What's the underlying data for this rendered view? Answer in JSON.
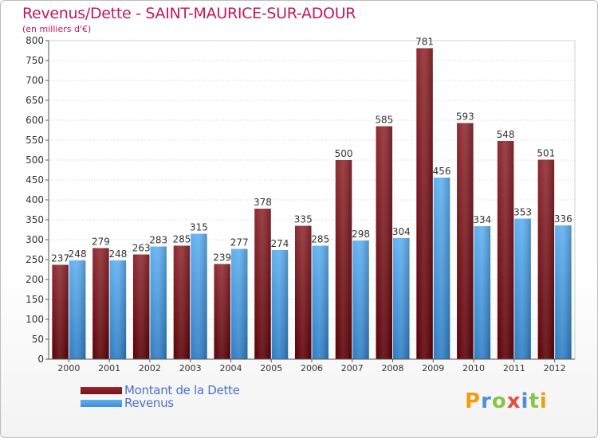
{
  "header": {
    "title": "Revenus/Dette - SAINT-MAURICE-SUR-ADOUR",
    "subtitle": "(en milliers d'€)"
  },
  "legend": {
    "dette": "Montant de la Dette",
    "revenus": "Revenus"
  },
  "logo": {
    "text": "Proxiti",
    "colors": [
      "#f39c12",
      "#4a90d9",
      "#8bc34a",
      "#e74c3c",
      "#4a90d9",
      "#8bc34a",
      "#f39c12"
    ]
  },
  "colors": {
    "dette": "#7a0f15",
    "revenus": "#3f8fd8",
    "title": "#c2185b",
    "legend_text": "#4d6fcf"
  },
  "chart_data": {
    "type": "bar",
    "title": "Revenus/Dette - SAINT-MAURICE-SUR-ADOUR",
    "subtitle": "(en milliers d'€)",
    "categories": [
      "2000",
      "2001",
      "2002",
      "2003",
      "2004",
      "2005",
      "2006",
      "2007",
      "2008",
      "2009",
      "2010",
      "2011",
      "2012"
    ],
    "series": [
      {
        "name": "Montant de la Dette",
        "values": [
          237,
          279,
          263,
          285,
          239,
          378,
          335,
          500,
          585,
          781,
          593,
          548,
          501
        ]
      },
      {
        "name": "Revenus",
        "values": [
          248,
          248,
          283,
          315,
          277,
          274,
          285,
          298,
          304,
          456,
          334,
          353,
          336
        ]
      }
    ],
    "ylim": [
      0,
      800
    ],
    "yticks": [
      0,
      50,
      100,
      150,
      200,
      250,
      300,
      350,
      400,
      450,
      500,
      550,
      600,
      650,
      700,
      750,
      800
    ],
    "grid": true,
    "legend_position": "bottom-left",
    "data_labels": true
  }
}
